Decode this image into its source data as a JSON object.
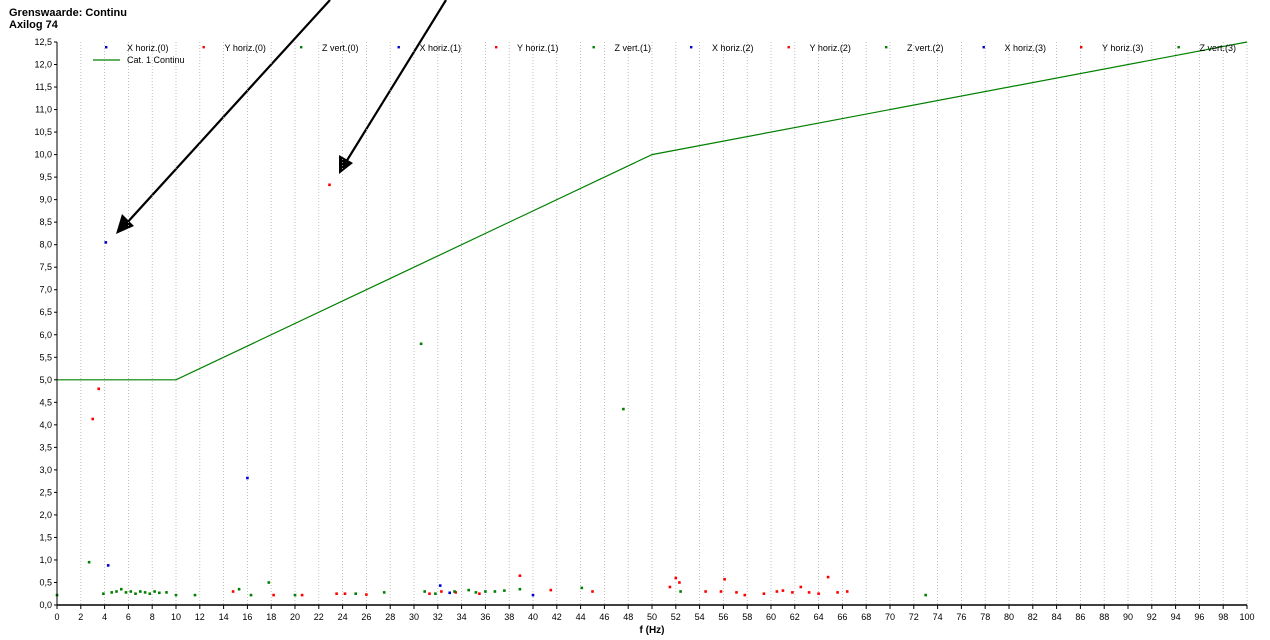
{
  "header": {
    "title": "Grenswaarde: Continu",
    "subtitle": "Axilog 74"
  },
  "chart_data": {
    "type": "scatter",
    "title": "Grenswaarde: Continu",
    "subtitle": "Axilog 74",
    "xlabel": "f (Hz)",
    "ylabel": "",
    "xlim": [
      0,
      100
    ],
    "ylim": [
      0,
      12.5
    ],
    "xticks": [
      "0",
      "2",
      "4",
      "6",
      "8",
      "10",
      "12",
      "14",
      "16",
      "18",
      "20",
      "22",
      "24",
      "26",
      "28",
      "30",
      "32",
      "34",
      "36",
      "38",
      "40",
      "42",
      "44",
      "46",
      "48",
      "50",
      "52",
      "54",
      "56",
      "58",
      "60",
      "62",
      "64",
      "66",
      "68",
      "70",
      "72",
      "74",
      "76",
      "78",
      "80",
      "82",
      "84",
      "86",
      "88",
      "90",
      "92",
      "94",
      "96",
      "98",
      "100"
    ],
    "yticks": [
      "0,0",
      "0,5",
      "1,0",
      "1,5",
      "2,0",
      "2,5",
      "3,0",
      "3,5",
      "4,0",
      "4,5",
      "5,0",
      "5,5",
      "6,0",
      "6,5",
      "7,0",
      "7,5",
      "8,0",
      "8,5",
      "9,0",
      "9,5",
      "10,0",
      "10,5",
      "11,0",
      "11,5",
      "12,0",
      "12,5"
    ],
    "grid": "vertical dotted",
    "legend_position": "top",
    "colors": {
      "x": "#0000cc",
      "y": "#ff0000",
      "z": "#008000",
      "line": "#008000"
    },
    "legend_row1": [
      {
        "name": "X horiz.(0)",
        "color": "#0000cc"
      },
      {
        "name": "Y horiz.(0)",
        "color": "#ff0000"
      },
      {
        "name": "Z vert.(0)",
        "color": "#008000"
      },
      {
        "name": "X horiz.(1)",
        "color": "#0000cc"
      },
      {
        "name": "Y horiz.(1)",
        "color": "#ff0000"
      },
      {
        "name": "Z vert.(1)",
        "color": "#008000"
      },
      {
        "name": "X horiz.(2)",
        "color": "#0000cc"
      },
      {
        "name": "Y horiz.(2)",
        "color": "#ff0000"
      },
      {
        "name": "Z vert.(2)",
        "color": "#008000"
      },
      {
        "name": "X horiz.(3)",
        "color": "#0000cc"
      },
      {
        "name": "Y horiz.(3)",
        "color": "#ff0000"
      },
      {
        "name": "Z vert.(3)",
        "color": "#008000"
      }
    ],
    "limit_line": {
      "name": "Cat. 1 Continu",
      "color": "#008000",
      "points": [
        [
          0,
          5.0
        ],
        [
          10,
          5.0
        ],
        [
          50,
          10.0
        ],
        [
          100,
          12.5
        ]
      ]
    },
    "series": [
      {
        "name": "X horiz.",
        "color": "#0000cc",
        "points": [
          [
            4.1,
            8.05
          ],
          [
            4.3,
            0.88
          ],
          [
            16.0,
            2.82
          ],
          [
            32.2,
            0.43
          ],
          [
            33.0,
            0.27
          ],
          [
            40.0,
            0.22
          ]
        ]
      },
      {
        "name": "Y horiz.",
        "color": "#ff0000",
        "points": [
          [
            3.5,
            4.8
          ],
          [
            3.0,
            4.13
          ],
          [
            22.9,
            9.33
          ],
          [
            14.8,
            0.3
          ],
          [
            18.2,
            0.22
          ],
          [
            20.6,
            0.22
          ],
          [
            23.5,
            0.25
          ],
          [
            24.2,
            0.25
          ],
          [
            26.0,
            0.23
          ],
          [
            31.3,
            0.25
          ],
          [
            32.3,
            0.3
          ],
          [
            33.5,
            0.28
          ],
          [
            35.5,
            0.25
          ],
          [
            38.9,
            0.65
          ],
          [
            41.5,
            0.33
          ],
          [
            45.0,
            0.3
          ],
          [
            51.5,
            0.4
          ],
          [
            52.0,
            0.6
          ],
          [
            52.3,
            0.5
          ],
          [
            54.5,
            0.3
          ],
          [
            55.8,
            0.3
          ],
          [
            56.1,
            0.57
          ],
          [
            57.1,
            0.28
          ],
          [
            57.8,
            0.22
          ],
          [
            59.4,
            0.25
          ],
          [
            60.5,
            0.3
          ],
          [
            61.0,
            0.32
          ],
          [
            61.8,
            0.28
          ],
          [
            62.5,
            0.4
          ],
          [
            63.2,
            0.28
          ],
          [
            64.0,
            0.25
          ],
          [
            64.8,
            0.62
          ],
          [
            65.6,
            0.28
          ],
          [
            66.4,
            0.3
          ]
        ]
      },
      {
        "name": "Z vert.",
        "color": "#008000",
        "points": [
          [
            0.0,
            0.22
          ],
          [
            2.7,
            0.95
          ],
          [
            3.9,
            0.25
          ],
          [
            4.6,
            0.28
          ],
          [
            5.0,
            0.3
          ],
          [
            5.4,
            0.35
          ],
          [
            5.8,
            0.28
          ],
          [
            6.2,
            0.3
          ],
          [
            6.6,
            0.25
          ],
          [
            7.0,
            0.3
          ],
          [
            7.4,
            0.28
          ],
          [
            7.8,
            0.25
          ],
          [
            8.2,
            0.3
          ],
          [
            8.6,
            0.27
          ],
          [
            9.2,
            0.28
          ],
          [
            10.0,
            0.22
          ],
          [
            11.6,
            0.22
          ],
          [
            15.3,
            0.35
          ],
          [
            16.3,
            0.22
          ],
          [
            17.8,
            0.5
          ],
          [
            20.0,
            0.22
          ],
          [
            25.1,
            0.25
          ],
          [
            27.5,
            0.28
          ],
          [
            30.6,
            5.8
          ],
          [
            30.9,
            0.3
          ],
          [
            31.8,
            0.25
          ],
          [
            33.4,
            0.3
          ],
          [
            34.6,
            0.33
          ],
          [
            35.2,
            0.28
          ],
          [
            36.0,
            0.3
          ],
          [
            36.8,
            0.3
          ],
          [
            37.6,
            0.32
          ],
          [
            38.9,
            0.35
          ],
          [
            44.1,
            0.38
          ],
          [
            47.6,
            4.35
          ],
          [
            52.4,
            0.3
          ],
          [
            73.0,
            0.22
          ]
        ]
      }
    ]
  }
}
